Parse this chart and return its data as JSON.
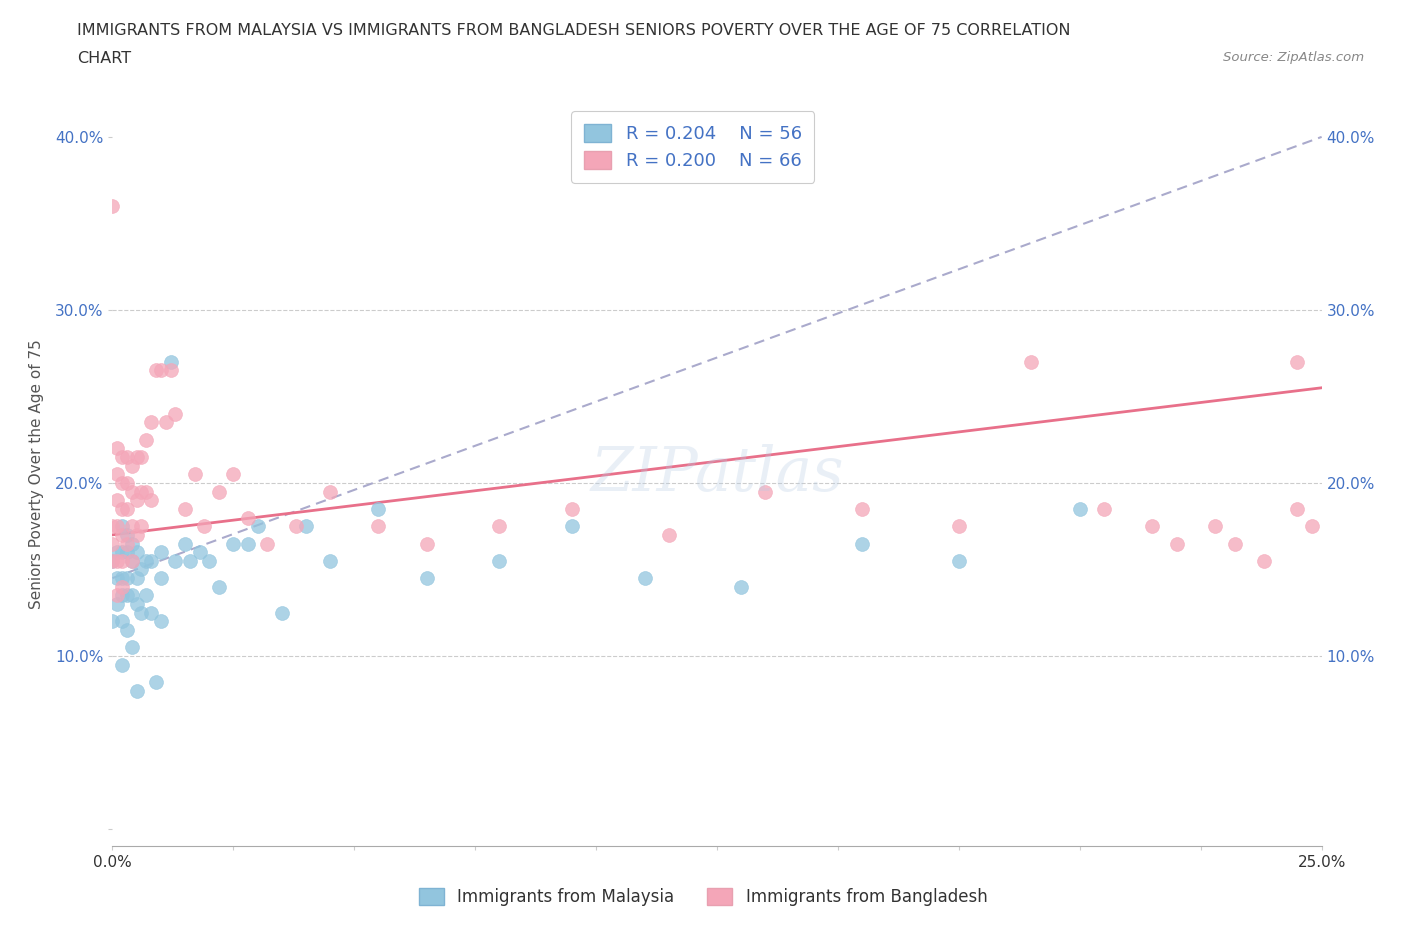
{
  "title_line1": "IMMIGRANTS FROM MALAYSIA VS IMMIGRANTS FROM BANGLADESH SENIORS POVERTY OVER THE AGE OF 75 CORRELATION",
  "title_line2": "CHART",
  "source": "Source: ZipAtlas.com",
  "ylabel": "Seniors Poverty Over the Age of 75",
  "xlim": [
    0.0,
    0.25
  ],
  "ylim": [
    -0.01,
    0.42
  ],
  "malaysia_color": "#92C5DE",
  "bangladesh_color": "#F4A6B8",
  "malaysia_line_color": "#6BAED6",
  "bangladesh_line_color": "#E8708A",
  "watermark": "ZIPatlas",
  "legend_malaysia_R": "R = 0.204",
  "legend_malaysia_N": "N = 56",
  "legend_bangladesh_R": "R = 0.200",
  "legend_bangladesh_N": "N = 66",
  "malaysia_x": [
    0.0,
    0.0,
    0.001,
    0.001,
    0.001,
    0.002,
    0.002,
    0.002,
    0.002,
    0.002,
    0.002,
    0.003,
    0.003,
    0.003,
    0.003,
    0.003,
    0.004,
    0.004,
    0.004,
    0.004,
    0.005,
    0.005,
    0.005,
    0.005,
    0.006,
    0.006,
    0.007,
    0.007,
    0.008,
    0.008,
    0.009,
    0.01,
    0.01,
    0.01,
    0.012,
    0.013,
    0.015,
    0.016,
    0.018,
    0.02,
    0.022,
    0.025,
    0.028,
    0.03,
    0.035,
    0.04,
    0.045,
    0.055,
    0.065,
    0.08,
    0.095,
    0.11,
    0.13,
    0.155,
    0.175,
    0.2
  ],
  "malaysia_y": [
    0.155,
    0.12,
    0.16,
    0.145,
    0.13,
    0.175,
    0.16,
    0.145,
    0.135,
    0.12,
    0.095,
    0.17,
    0.16,
    0.145,
    0.135,
    0.115,
    0.165,
    0.155,
    0.135,
    0.105,
    0.16,
    0.145,
    0.13,
    0.08,
    0.15,
    0.125,
    0.155,
    0.135,
    0.155,
    0.125,
    0.085,
    0.16,
    0.145,
    0.12,
    0.27,
    0.155,
    0.165,
    0.155,
    0.16,
    0.155,
    0.14,
    0.165,
    0.165,
    0.175,
    0.125,
    0.175,
    0.155,
    0.185,
    0.145,
    0.155,
    0.175,
    0.145,
    0.14,
    0.165,
    0.155,
    0.185
  ],
  "bangladesh_x": [
    0.0,
    0.0,
    0.0,
    0.0,
    0.001,
    0.001,
    0.001,
    0.001,
    0.001,
    0.001,
    0.002,
    0.002,
    0.002,
    0.002,
    0.002,
    0.002,
    0.003,
    0.003,
    0.003,
    0.003,
    0.004,
    0.004,
    0.004,
    0.004,
    0.005,
    0.005,
    0.005,
    0.006,
    0.006,
    0.006,
    0.007,
    0.007,
    0.008,
    0.008,
    0.009,
    0.01,
    0.011,
    0.012,
    0.013,
    0.015,
    0.017,
    0.019,
    0.022,
    0.025,
    0.028,
    0.032,
    0.038,
    0.045,
    0.055,
    0.065,
    0.08,
    0.095,
    0.115,
    0.135,
    0.155,
    0.175,
    0.19,
    0.205,
    0.215,
    0.22,
    0.228,
    0.232,
    0.238,
    0.245,
    0.245,
    0.248
  ],
  "bangladesh_y": [
    0.175,
    0.165,
    0.155,
    0.36,
    0.22,
    0.205,
    0.19,
    0.175,
    0.155,
    0.135,
    0.215,
    0.2,
    0.185,
    0.17,
    0.155,
    0.14,
    0.215,
    0.2,
    0.185,
    0.165,
    0.21,
    0.195,
    0.175,
    0.155,
    0.215,
    0.19,
    0.17,
    0.215,
    0.195,
    0.175,
    0.225,
    0.195,
    0.235,
    0.19,
    0.265,
    0.265,
    0.235,
    0.265,
    0.24,
    0.185,
    0.205,
    0.175,
    0.195,
    0.205,
    0.18,
    0.165,
    0.175,
    0.195,
    0.175,
    0.165,
    0.175,
    0.185,
    0.17,
    0.195,
    0.185,
    0.175,
    0.27,
    0.185,
    0.175,
    0.165,
    0.175,
    0.165,
    0.155,
    0.27,
    0.185,
    0.175
  ]
}
